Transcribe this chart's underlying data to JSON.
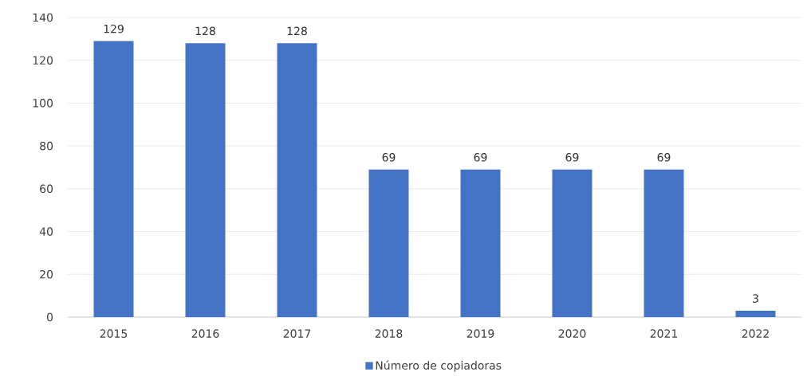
{
  "chart_data": {
    "type": "bar",
    "categories": [
      "2015",
      "2016",
      "2017",
      "2018",
      "2019",
      "2020",
      "2021",
      "2022"
    ],
    "series": [
      {
        "name": "Número de copiadoras",
        "color": "#4472c4",
        "values": [
          129,
          128,
          128,
          69,
          69,
          69,
          69,
          3
        ]
      }
    ],
    "ylim": [
      0,
      140
    ],
    "yticks": [
      0,
      20,
      40,
      60,
      80,
      100,
      120,
      140
    ],
    "grid": "y",
    "legend": "bottom",
    "data_labels": true
  }
}
